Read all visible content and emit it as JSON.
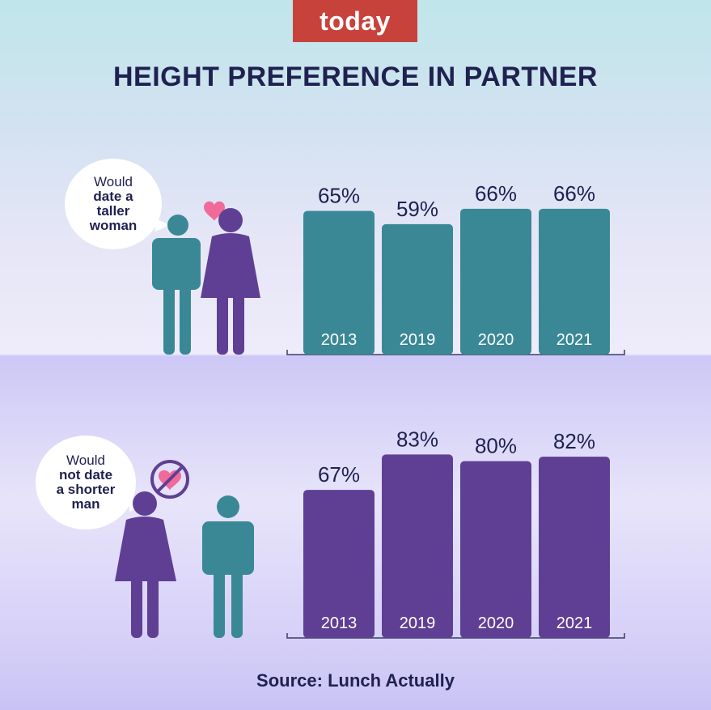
{
  "brand": "today",
  "title": "HEIGHT PREFERENCE IN PARTNER",
  "source": "Source: Lunch Actually",
  "colors": {
    "teal": "#3a8896",
    "purple": "#5f3f94",
    "brand_red": "#c8423c",
    "navy": "#1f2150",
    "heart": "#f06a9a"
  },
  "panels": {
    "top": {
      "bubble_line1": "Would",
      "bubble_line2": "date a",
      "bubble_line3": "taller",
      "bubble_line4": "woman"
    },
    "bottom": {
      "bubble_line1": "Would",
      "bubble_line2": "not date",
      "bubble_line3": "a shorter",
      "bubble_line4": "man"
    }
  },
  "chart_data": [
    {
      "type": "bar",
      "categories": [
        "2013",
        "2019",
        "2020",
        "2021"
      ],
      "values": [
        65,
        59,
        66,
        66
      ],
      "value_labels": [
        "65%",
        "59%",
        "66%",
        "66%"
      ],
      "color": "#3a8896",
      "grid": false,
      "title": "",
      "xlabel": "",
      "ylabel": ""
    },
    {
      "type": "bar",
      "categories": [
        "2013",
        "2019",
        "2020",
        "2021"
      ],
      "values": [
        67,
        83,
        80,
        82
      ],
      "value_labels": [
        "67%",
        "83%",
        "80%",
        "82%"
      ],
      "color": "#5f3f94",
      "grid": false,
      "title": "",
      "xlabel": "",
      "ylabel": ""
    }
  ]
}
